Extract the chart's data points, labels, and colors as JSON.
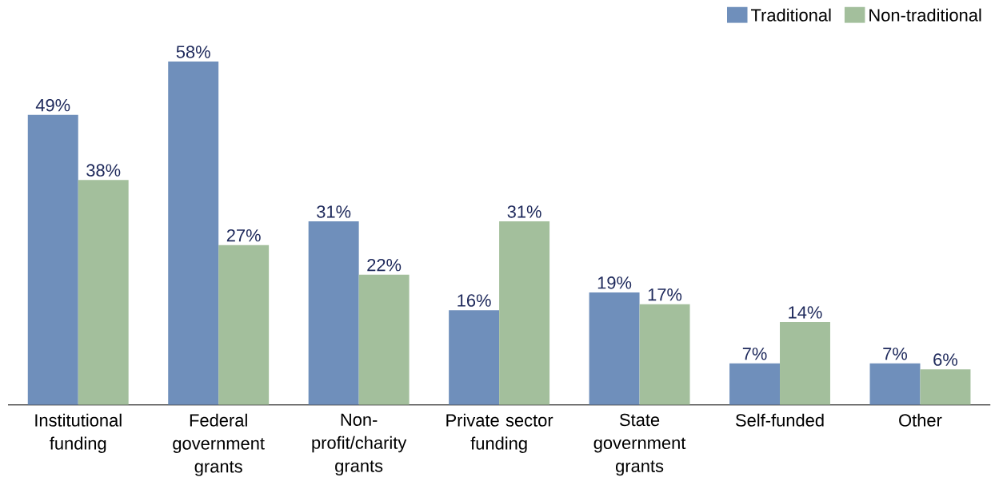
{
  "chart_data": {
    "type": "bar",
    "categories": [
      "Institutional funding",
      "Federal government grants",
      "Non-profit/charity grants",
      "Private sector funding",
      "State government grants",
      "Self-funded",
      "Other"
    ],
    "series": [
      {
        "name": "Traditional",
        "color": "#6f8fbb",
        "values": [
          49,
          58,
          31,
          16,
          19,
          7,
          7
        ],
        "value_labels": [
          "49%",
          "58%",
          "31%",
          "16%",
          "19%",
          "7%",
          "7%"
        ]
      },
      {
        "name": "Non-traditional",
        "color": "#a3bf9c",
        "values": [
          38,
          27,
          22,
          31,
          17,
          14,
          6
        ],
        "value_labels": [
          "38%",
          "27%",
          "22%",
          "31%",
          "17%",
          "14%",
          "6%"
        ]
      }
    ],
    "legend": "top right"
  }
}
